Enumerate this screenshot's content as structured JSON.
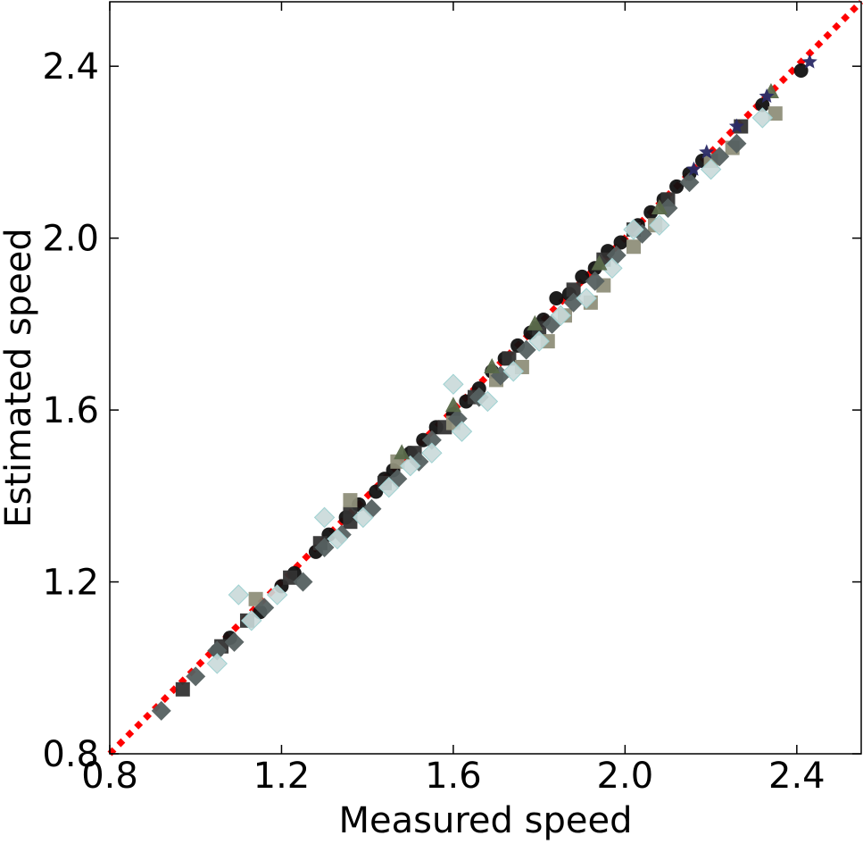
{
  "chart_data": {
    "type": "scatter",
    "title": "",
    "xlabel": "Measured speed",
    "ylabel": "Estimated speed",
    "xlim": [
      0.8,
      2.55
    ],
    "ylim": [
      0.8,
      2.55
    ],
    "x_ticks": [
      "0.8",
      "1.2",
      "1.6",
      "2.0",
      "2.4"
    ],
    "y_ticks": [
      "0.8",
      "1.2",
      "1.6",
      "2.0",
      "2.4"
    ],
    "x_tick_values": [
      0.8,
      1.2,
      1.6,
      2.0,
      2.4
    ],
    "y_tick_values": [
      0.8,
      1.2,
      1.6,
      2.0,
      2.4
    ],
    "grid": false,
    "reference_line": {
      "style": "dotted",
      "color": "#ff0000",
      "x": [
        0.8,
        2.55
      ],
      "y": [
        0.8,
        2.55
      ]
    },
    "series": [
      {
        "marker": "circle",
        "color": "#111111",
        "points": [
          [
            1.05,
            1.04
          ],
          [
            1.08,
            1.07
          ],
          [
            1.15,
            1.13
          ],
          [
            1.2,
            1.19
          ],
          [
            1.23,
            1.22
          ],
          [
            1.28,
            1.27
          ],
          [
            1.31,
            1.31
          ],
          [
            1.35,
            1.35
          ],
          [
            1.38,
            1.38
          ],
          [
            1.42,
            1.41
          ],
          [
            1.44,
            1.44
          ],
          [
            1.46,
            1.46
          ],
          [
            1.5,
            1.5
          ],
          [
            1.53,
            1.53
          ],
          [
            1.56,
            1.56
          ],
          [
            1.6,
            1.59
          ],
          [
            1.63,
            1.62
          ],
          [
            1.66,
            1.65
          ],
          [
            1.69,
            1.69
          ],
          [
            1.72,
            1.72
          ],
          [
            1.75,
            1.75
          ],
          [
            1.78,
            1.78
          ],
          [
            1.81,
            1.81
          ],
          [
            1.84,
            1.86
          ],
          [
            1.87,
            1.87
          ],
          [
            1.9,
            1.91
          ],
          [
            1.93,
            1.93
          ],
          [
            1.96,
            1.97
          ],
          [
            1.99,
            1.99
          ],
          [
            2.03,
            2.03
          ],
          [
            2.06,
            2.06
          ],
          [
            2.09,
            2.09
          ],
          [
            2.12,
            2.12
          ],
          [
            2.15,
            2.15
          ],
          [
            2.18,
            2.18
          ],
          [
            2.32,
            2.31
          ],
          [
            2.41,
            2.39
          ]
        ]
      },
      {
        "marker": "square",
        "color": "#333333",
        "points": [
          [
            0.97,
            0.95
          ],
          [
            1.06,
            1.05
          ],
          [
            1.12,
            1.11
          ],
          [
            1.22,
            1.21
          ],
          [
            1.29,
            1.29
          ],
          [
            1.36,
            1.36
          ],
          [
            1.36,
            1.34
          ],
          [
            1.44,
            1.43
          ],
          [
            1.51,
            1.5
          ],
          [
            1.58,
            1.56
          ],
          [
            1.65,
            1.63
          ],
          [
            1.73,
            1.72
          ],
          [
            1.8,
            1.79
          ],
          [
            1.88,
            1.88
          ],
          [
            1.95,
            1.95
          ],
          [
            2.02,
            2.02
          ],
          [
            2.1,
            2.09
          ],
          [
            2.27,
            2.26
          ]
        ]
      },
      {
        "marker": "square",
        "color": "#8f8f7a",
        "points": [
          [
            1.14,
            1.16
          ],
          [
            1.36,
            1.39
          ],
          [
            1.47,
            1.48
          ],
          [
            1.6,
            1.57
          ],
          [
            1.7,
            1.67
          ],
          [
            1.76,
            1.7
          ],
          [
            1.82,
            1.76
          ],
          [
            1.86,
            1.82
          ],
          [
            1.92,
            1.85
          ],
          [
            1.95,
            1.89
          ],
          [
            2.02,
            1.98
          ],
          [
            2.07,
            2.03
          ],
          [
            2.2,
            2.18
          ],
          [
            2.25,
            2.21
          ],
          [
            2.35,
            2.29
          ]
        ]
      },
      {
        "marker": "diamond",
        "color": "#556060",
        "points": [
          [
            0.92,
            0.9
          ],
          [
            1.0,
            0.98
          ],
          [
            1.05,
            1.04
          ],
          [
            1.09,
            1.06
          ],
          [
            1.16,
            1.14
          ],
          [
            1.25,
            1.2
          ],
          [
            1.3,
            1.28
          ],
          [
            1.34,
            1.31
          ],
          [
            1.41,
            1.37
          ],
          [
            1.47,
            1.44
          ],
          [
            1.52,
            1.48
          ],
          [
            1.55,
            1.53
          ],
          [
            1.61,
            1.58
          ],
          [
            1.66,
            1.63
          ],
          [
            1.71,
            1.68
          ],
          [
            1.77,
            1.74
          ],
          [
            1.83,
            1.8
          ],
          [
            1.88,
            1.85
          ],
          [
            1.93,
            1.9
          ],
          [
            1.98,
            1.96
          ],
          [
            2.04,
            2.01
          ],
          [
            2.1,
            2.07
          ],
          [
            2.15,
            2.13
          ],
          [
            2.22,
            2.19
          ],
          [
            2.26,
            2.22
          ]
        ]
      },
      {
        "marker": "diamond",
        "color": "#c9d9d9",
        "points": [
          [
            1.1,
            1.17
          ],
          [
            1.05,
            1.01
          ],
          [
            1.13,
            1.11
          ],
          [
            1.19,
            1.17
          ],
          [
            1.3,
            1.35
          ],
          [
            1.33,
            1.3
          ],
          [
            1.39,
            1.35
          ],
          [
            1.45,
            1.42
          ],
          [
            1.5,
            1.47
          ],
          [
            1.55,
            1.5
          ],
          [
            1.6,
            1.66
          ],
          [
            1.62,
            1.55
          ],
          [
            1.68,
            1.62
          ],
          [
            1.74,
            1.69
          ],
          [
            1.8,
            1.76
          ],
          [
            1.85,
            1.82
          ],
          [
            1.91,
            1.86
          ],
          [
            1.97,
            1.93
          ],
          [
            2.02,
            2.02
          ],
          [
            2.08,
            2.03
          ],
          [
            2.2,
            2.16
          ],
          [
            2.32,
            2.28
          ]
        ]
      },
      {
        "marker": "triangle",
        "color": "#5a6a4a",
        "points": [
          [
            1.48,
            1.5
          ],
          [
            1.6,
            1.61
          ],
          [
            1.69,
            1.7
          ],
          [
            1.79,
            1.8
          ],
          [
            1.94,
            1.94
          ],
          [
            2.08,
            2.07
          ],
          [
            2.34,
            2.34
          ]
        ]
      },
      {
        "marker": "star",
        "color": "#2a2a66",
        "points": [
          [
            2.16,
            2.16
          ],
          [
            2.19,
            2.2
          ],
          [
            2.26,
            2.26
          ],
          [
            2.33,
            2.33
          ],
          [
            2.43,
            2.41
          ]
        ]
      }
    ]
  }
}
